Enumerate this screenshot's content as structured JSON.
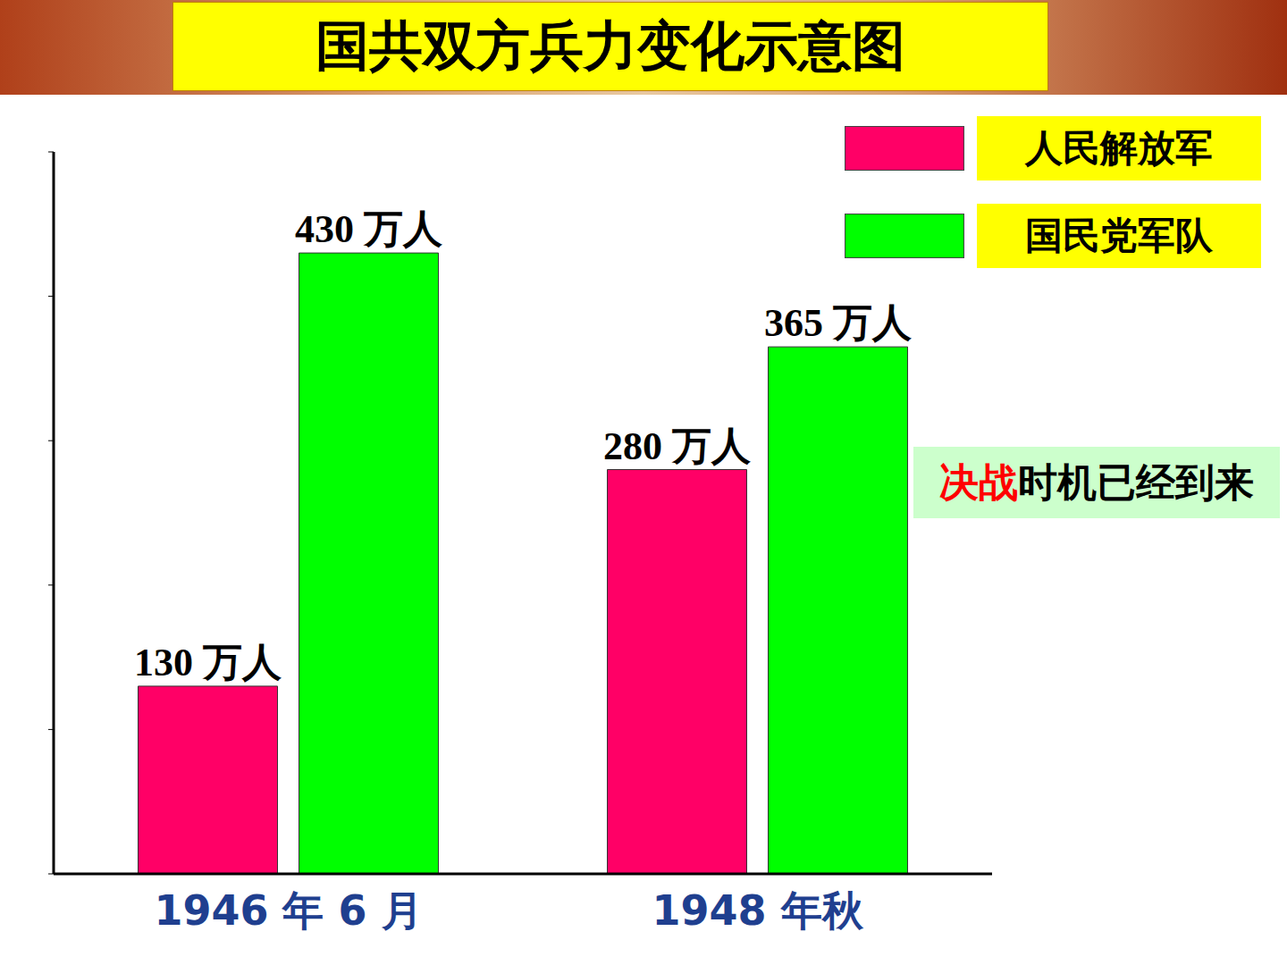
{
  "chart_data": {
    "type": "bar",
    "title": "国共双方兵力变化示意图",
    "categories": [
      "1946 年 6 月",
      "1948 年秋"
    ],
    "series": [
      {
        "name": "人民解放军",
        "color": "#ff0066",
        "values": [
          130,
          280
        ],
        "value_labels": [
          "130 万人",
          "280 万人"
        ]
      },
      {
        "name": "国民党军队",
        "color": "#00ff00",
        "values": [
          430,
          365
        ],
        "value_labels": [
          "430 万人",
          "365 万人"
        ]
      }
    ],
    "ylim": [
      0,
      500
    ],
    "yticks": [
      0,
      100,
      200,
      300,
      400,
      500
    ],
    "grid": false,
    "legend": "upper right",
    "data_labels": true,
    "tick_labels": "x",
    "annotation": "决战时机已经到来",
    "annotation_highlight": "决战"
  }
}
